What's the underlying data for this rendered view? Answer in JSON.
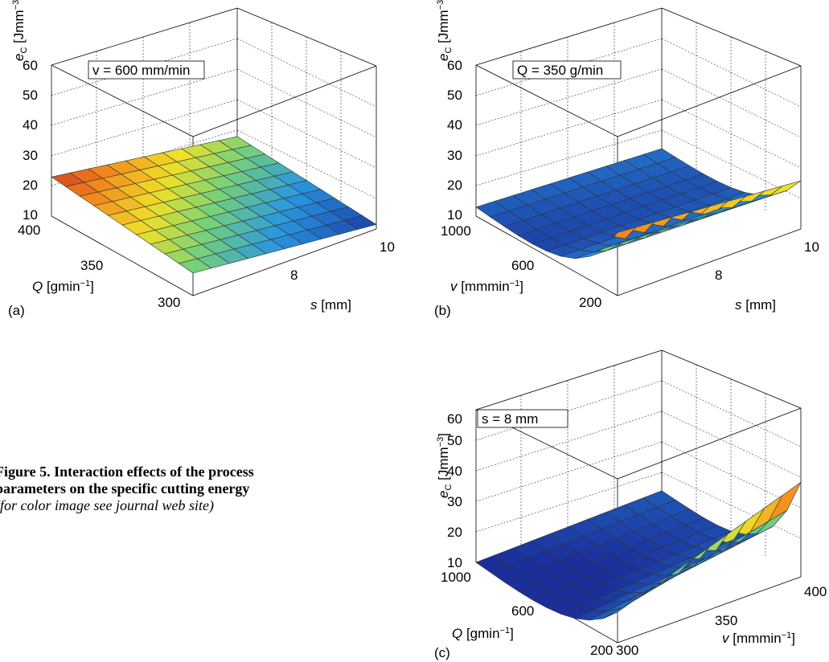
{
  "caption": {
    "bold_lines": [
      "Figure 5. Interaction effects of the process",
      "parameters on the specific cutting energy"
    ],
    "italic_line": "(for color image see journal web site)"
  },
  "chart_data": [
    {
      "panel": "(a)",
      "type": "surface",
      "annotation": "v = 600 mm/min",
      "zlabel": "e_C [Jmm^-3]",
      "xlabel": "Q [gmin^-1]",
      "ylabel": "s [mm]",
      "z_ticks": [
        "10",
        "20",
        "30",
        "40",
        "50",
        "60"
      ],
      "x_ticks": [
        "400",
        "350",
        "300"
      ],
      "y_ticks": [
        "8",
        "10"
      ],
      "zlim": [
        10,
        60
      ],
      "grid": true,
      "corners": {
        "Q=300,s=min": 17.5,
        "Q=400,s=min": 23.0,
        "Q=300,s=10": 11.5,
        "Q=400,s=10": 18.0
      }
    },
    {
      "panel": "(b)",
      "type": "surface",
      "annotation": "Q = 350 g/min",
      "zlabel": "e_C [Jmm^-3]",
      "xlabel": "v [mmmin^-1]",
      "ylabel": "s [mm]",
      "z_ticks": [
        "10",
        "20",
        "30",
        "40",
        "50",
        "60"
      ],
      "x_ticks": [
        "1000",
        "600",
        "200"
      ],
      "y_ticks": [
        "8",
        "10"
      ],
      "zlim": [
        10,
        60
      ],
      "grid": true,
      "corners": {
        "v=1000,s=min": 13.0,
        "v=200,s=min": 31.0,
        "v=200,s=10": 26.0,
        "v=1000,s=10": 14.0
      }
    },
    {
      "panel": "(c)",
      "type": "surface",
      "annotation": "s = 8 mm",
      "zlabel": "e_C [Jmm^-3]",
      "xlabel": "Q [gmin^-1]",
      "ylabel": "v [mmmin^-1]",
      "z_ticks": [
        "10",
        "20",
        "30",
        "40",
        "50",
        "60"
      ],
      "x_ticks": [
        "1000",
        "600",
        "200"
      ],
      "y_ticks": [
        "300",
        "350",
        "400"
      ],
      "zlim": [
        10,
        60
      ],
      "grid": true,
      "corners": {
        "Q=1000,v=300": 10.0,
        "Q=200,v=300": 20.0,
        "Q=200,v=400": 41.0,
        "Q=1000,v=400": 14.0
      }
    }
  ]
}
